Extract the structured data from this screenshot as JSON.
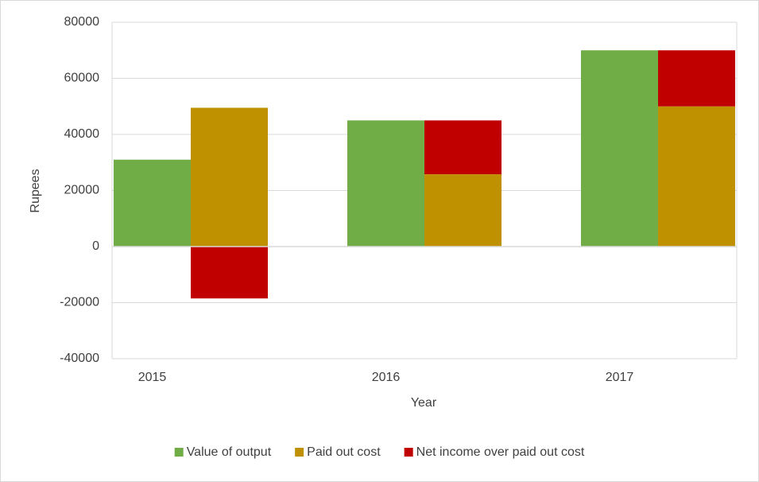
{
  "chart_data": {
    "type": "bar",
    "x_label": "Year",
    "y_label": "Rupees",
    "categories": [
      "2015",
      "2016",
      "2017"
    ],
    "series": [
      {
        "name": "Value of output",
        "color": "#70ad47",
        "values": [
          31000,
          45000,
          70000
        ]
      },
      {
        "name": "Paid out cost",
        "color": "#bf9000",
        "values": [
          49500,
          25800,
          50000
        ]
      },
      {
        "name": "Net income over paid out cost",
        "color": "#c00000",
        "values": [
          -18500,
          19200,
          20000
        ]
      }
    ],
    "ylim": [
      -40000,
      80000
    ],
    "yticks": [
      -40000,
      -20000,
      0,
      20000,
      40000,
      60000,
      80000
    ],
    "grid": true,
    "legend": "bottom"
  }
}
